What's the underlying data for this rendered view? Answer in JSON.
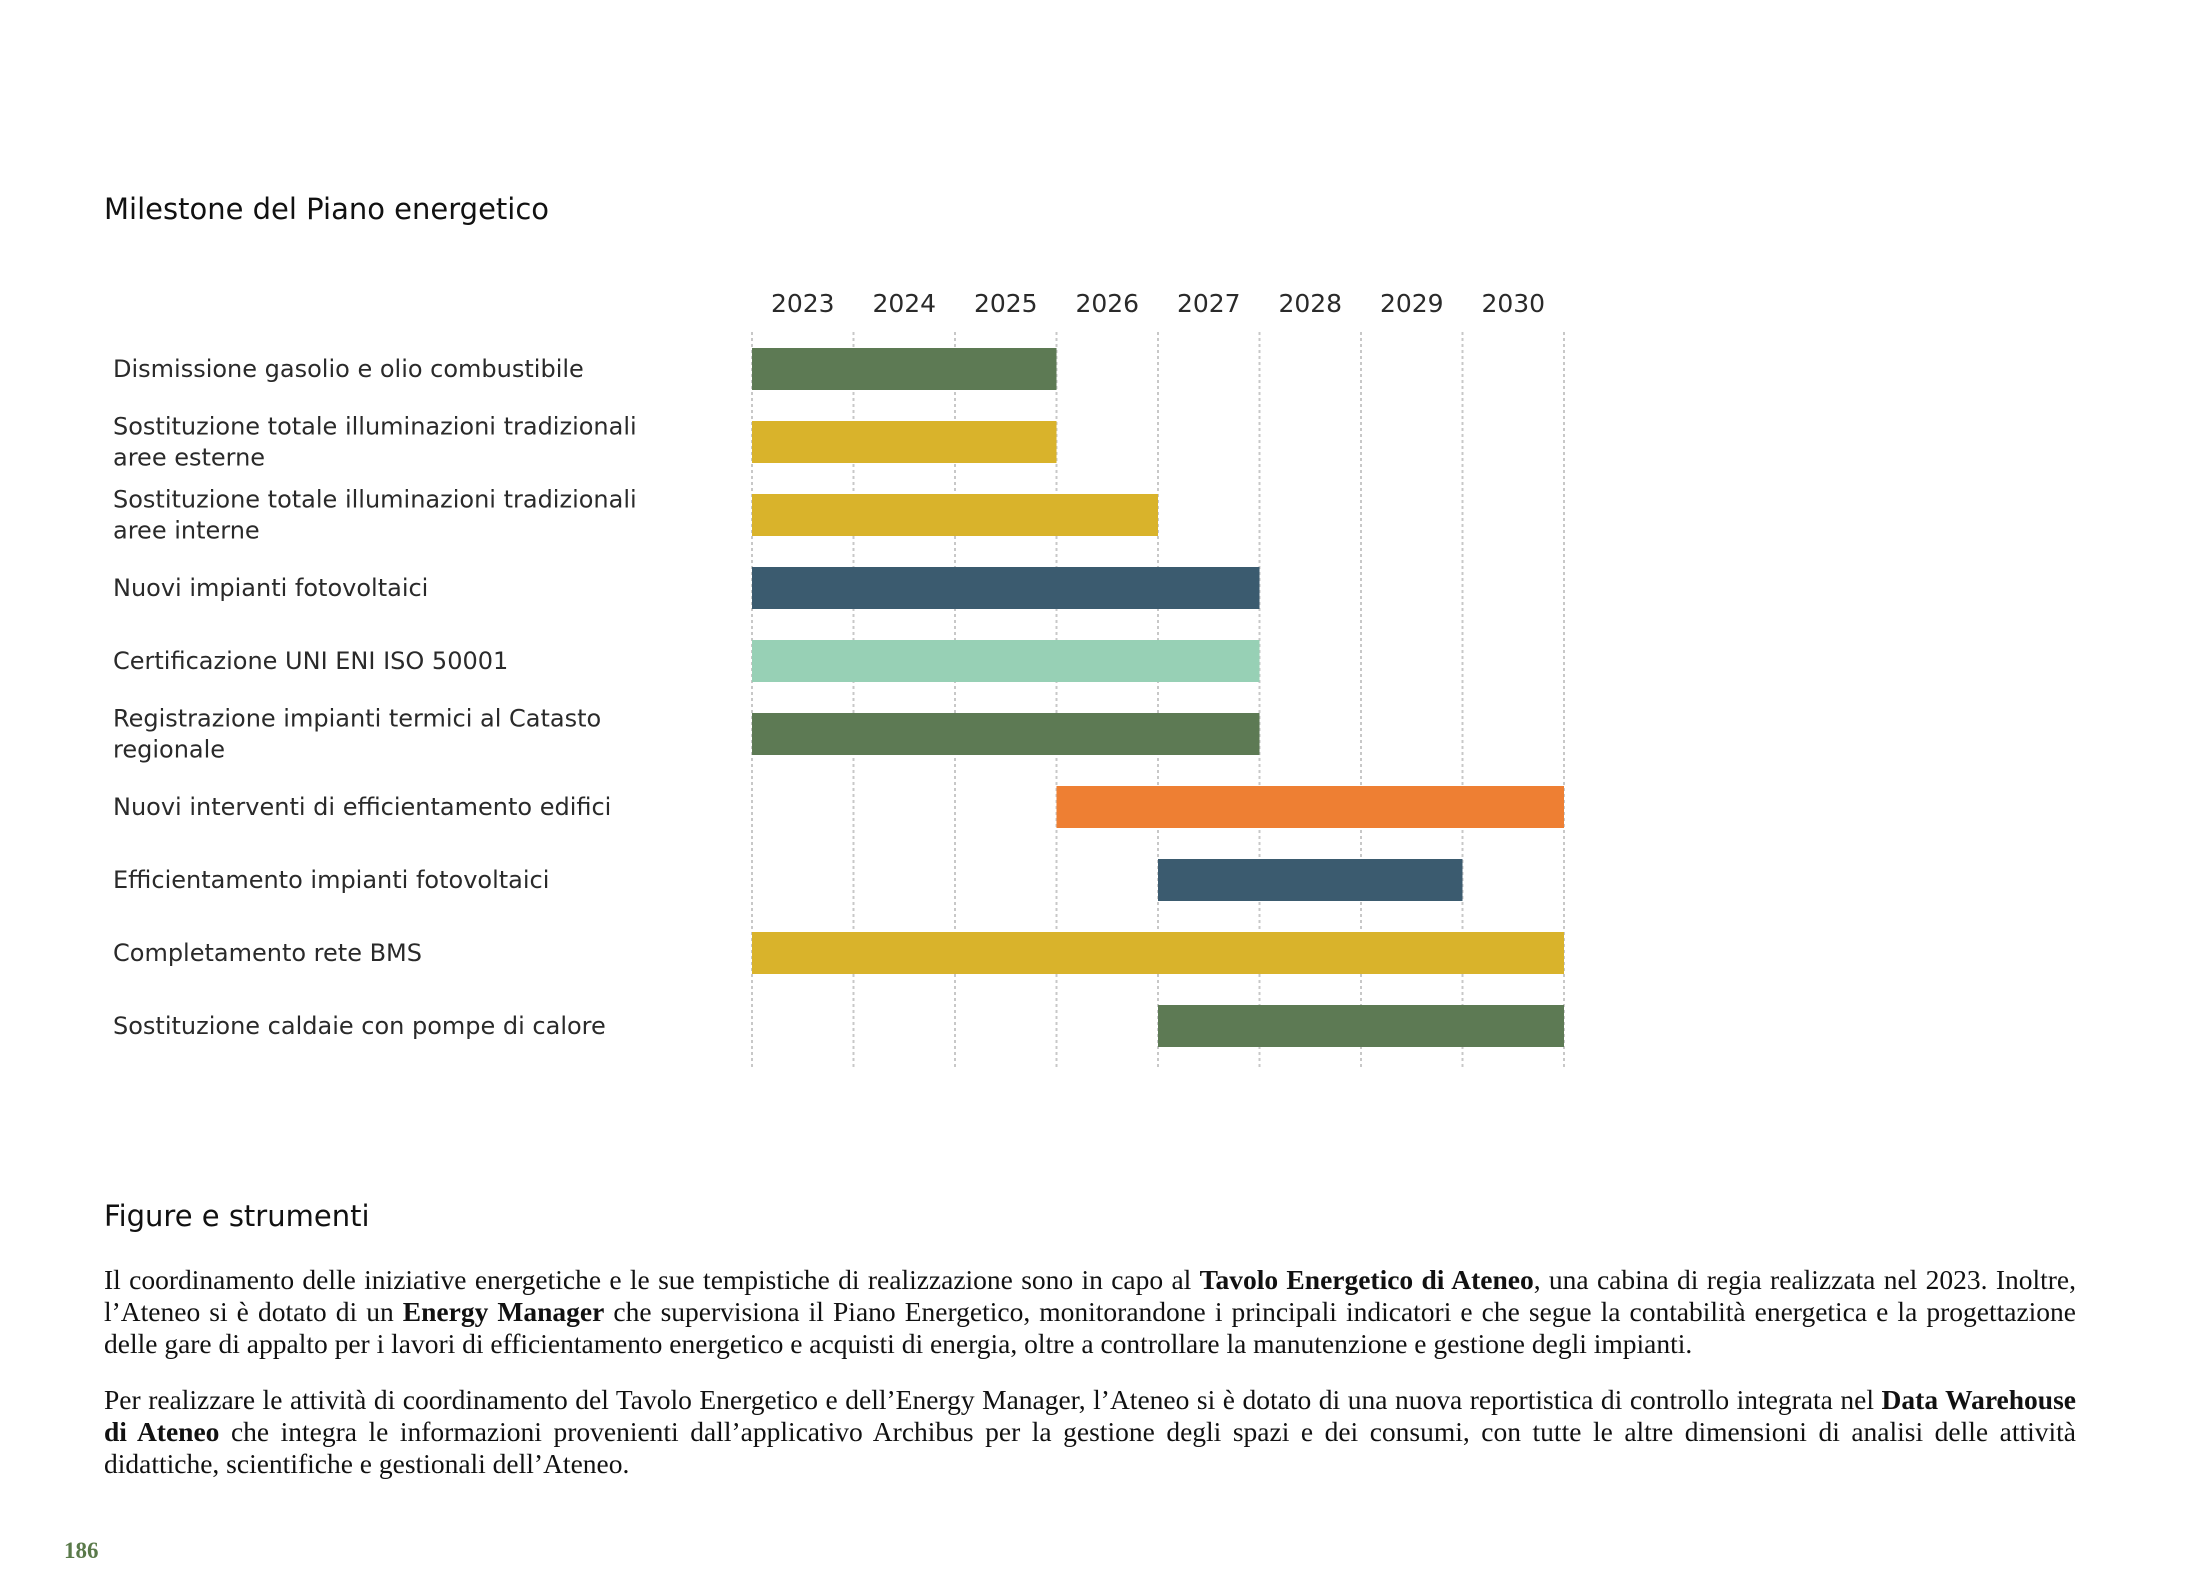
{
  "section_title": "Milestone del Piano energetico",
  "chart_data": {
    "type": "gantt",
    "years": [
      "2023",
      "2024",
      "2025",
      "2026",
      "2027",
      "2028",
      "2029",
      "2030"
    ],
    "tasks": [
      {
        "label_lines": [
          "Dismissione gasolio e olio combustibile"
        ],
        "start": 2023.0,
        "end": 2026.0,
        "color": "#5d7a54"
      },
      {
        "label_lines": [
          "Sostituzione totale illuminazioni tradizionali",
          "aree esterne"
        ],
        "start": 2023.0,
        "end": 2026.0,
        "color": "#d9b32b"
      },
      {
        "label_lines": [
          "Sostituzione totale illuminazioni tradizionali",
          "aree interne"
        ],
        "start": 2023.0,
        "end": 2027.0,
        "color": "#d9b32b"
      },
      {
        "label_lines": [
          "Nuovi impianti fotovoltaici"
        ],
        "start": 2023.0,
        "end": 2028.0,
        "color": "#3b5b6f"
      },
      {
        "label_lines": [
          "Certificazione UNI ENI ISO 50001"
        ],
        "start": 2023.0,
        "end": 2028.0,
        "color": "#97d0b5"
      },
      {
        "label_lines": [
          "Registrazione impianti termici al Catasto",
          "regionale"
        ],
        "start": 2023.0,
        "end": 2028.0,
        "color": "#5d7a54"
      },
      {
        "label_lines": [
          "Nuovi interventi di efficientamento edifici"
        ],
        "start": 2026.0,
        "end": 2031.0,
        "color": "#ee7f33"
      },
      {
        "label_lines": [
          "Efficientamento impianti fotovoltaici"
        ],
        "start": 2027.0,
        "end": 2030.0,
        "color": "#3b5b6f"
      },
      {
        "label_lines": [
          "Completamento rete BMS"
        ],
        "start": 2023.0,
        "end": 2031.0,
        "color": "#d9b32b"
      },
      {
        "label_lines": [
          "Sostituzione caldaie con pompe di calore"
        ],
        "start": 2027.0,
        "end": 2031.0,
        "color": "#5d7a54"
      }
    ]
  },
  "figures_section": {
    "title": "Figure e strumenti",
    "paragraph1": {
      "t1": "Il coordinamento delle iniziative energetiche e le sue tempistiche di realizzazione sono in capo al ",
      "b1": "Tavolo Energetico di Ateneo",
      "t2": ", una cabina di regia realizzata nel 2023. Inoltre, l’Ateneo si è dotato di un ",
      "b2": "Energy Manager",
      "t3": " che supervisiona il Piano Energetico, monitorandone i principali indicatori e che segue la contabilità energetica e la progettazione delle gare di appalto per i lavori di efficientamento energetico e acquisti di energia, oltre a controllare la manutenzione e gestione degli impianti."
    },
    "paragraph2": {
      "t1": "Per realizzare le attività di coordinamento del Tavolo Energetico e dell’Energy Manager, l’Ateneo si è dotato di una nuova reportistica di controllo integrata nel ",
      "b1": "Data Warehouse di Ateneo",
      "t2": " che integra le informazioni provenienti dall’applicativo Archibus per la gestione degli spazi e dei consumi, con tutte le altre dimensioni di analisi delle attività didattiche, scientifiche e gestionali dell’Ateneo."
    }
  },
  "page_number": "186"
}
